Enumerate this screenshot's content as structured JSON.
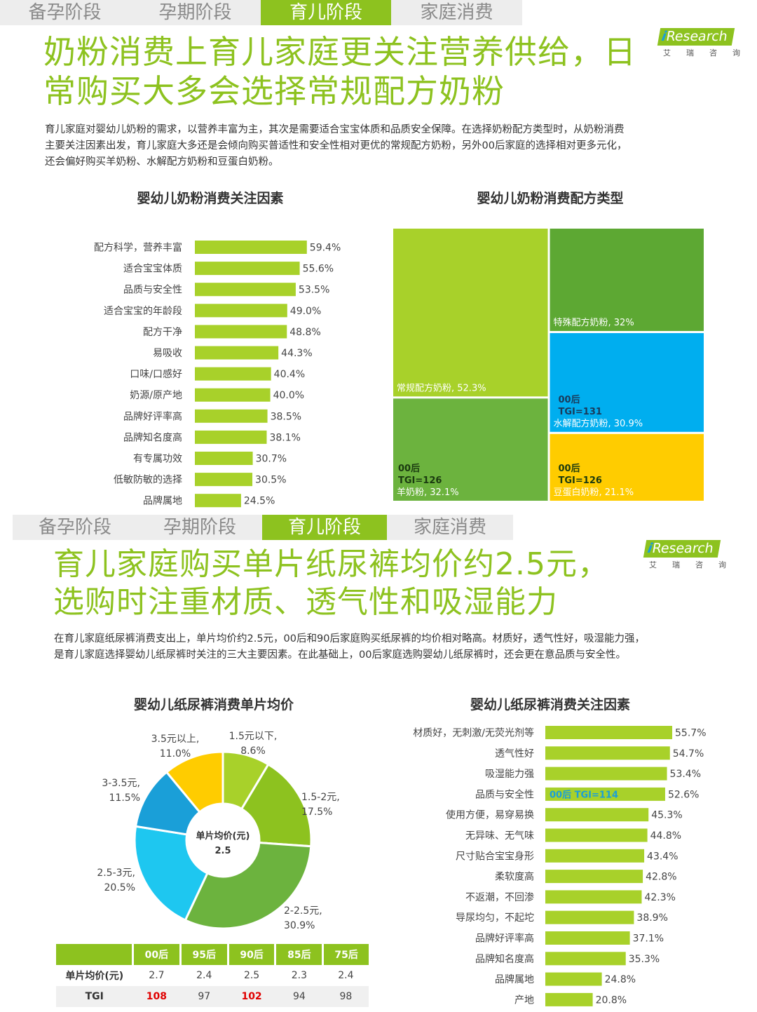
{
  "panel1": {
    "tabs": [
      "备孕阶段",
      "孕期阶段",
      "育儿阶段",
      "家庭消费"
    ],
    "active_tab": 2,
    "headline_lines": [
      "奶粉消费上育儿家庭更关注营养供给，日",
      "常购买大多会选择常规配方奶粉"
    ],
    "logo": {
      "mark": "Research",
      "i": "i",
      "sub": "艾瑞咨询"
    },
    "description_lines": [
      "育儿家庭对婴幼儿奶粉的需求，以营养丰富为主，其次是需要适合宝宝体质和品质安全保障。在选择奶粉配方类型时，从奶粉消费",
      "主要关注因素出发，育儿家庭大多还是会倾向购买普适性和安全性相对更优的常规配方奶粉，另外00后家庭的选择相对更多元化，",
      "还会偏好购买羊奶粉、水解配方奶粉和豆蛋白奶粉。"
    ]
  },
  "panel2": {
    "tabs": [
      "备孕阶段",
      "孕期阶段",
      "育儿阶段",
      "家庭消费"
    ],
    "active_tab": 2,
    "headline_lines": [
      "育儿家庭购买单片纸尿裤均价约2.5元，",
      "选购时注重材质、透气性和吸湿能力"
    ],
    "logo": {
      "mark": "Research",
      "i": "i",
      "sub": "艾瑞咨询"
    },
    "description_lines": [
      "在育儿家庭纸尿裤消费支出上，单片均价约2.5元，00后和90后家庭购买纸尿裤的均价相对略高。材质好，透气性好，吸湿能力强，",
      "是育儿家庭选择婴幼儿纸尿裤时关注的三大主要因素。在此基础上，00后家庭选购婴幼儿纸尿裤时，还会更在意品质与安全性。"
    ]
  },
  "colors": {
    "accent": "#8dc21f",
    "green2": "#6cb33e",
    "green3": "#5da833",
    "blue": "#00aeef",
    "cyan": "#1ec7f0",
    "blue_dark": "#1a9fd8",
    "yellow": "#ffcc00",
    "lightgreen": "#a8d12a",
    "tgi_text": "#1a9fd8",
    "highlight": "#e00000"
  },
  "chart_data": [
    {
      "type": "bar",
      "orientation": "horizontal",
      "title": "婴幼儿奶粉消费关注因素",
      "categories": [
        "配方科学，营养丰富",
        "适合宝宝体质",
        "品质与安全性",
        "适合宝宝的年龄段",
        "配方干净",
        "易吸收",
        "口味/口感好",
        "奶源/原产地",
        "品牌好评率高",
        "品牌知名度高",
        "有专属功效",
        "低敏防敏的选择",
        "品牌属地"
      ],
      "values": [
        59.4,
        55.6,
        53.5,
        49.0,
        48.8,
        44.3,
        40.4,
        40.0,
        38.5,
        38.1,
        30.7,
        30.5,
        24.5
      ],
      "value_labels": [
        "59.4%",
        "55.6%",
        "53.5%",
        "49.0%",
        "48.8%",
        "44.3%",
        "40.4%",
        "40.0%",
        "38.5%",
        "38.1%",
        "30.7%",
        "30.5%",
        "24.5%"
      ],
      "unit": "%"
    },
    {
      "type": "treemap",
      "title": "婴幼儿奶粉消费配方类型",
      "items": [
        {
          "name": "常规配方奶粉",
          "value": 52.3,
          "label": "常规配方奶粉, 52.3%",
          "note": []
        },
        {
          "name": "羊奶粉",
          "value": 32.1,
          "label": "羊奶粉, 32.1%",
          "note": [
            "00后",
            "TGI=126"
          ]
        },
        {
          "name": "特殊配方奶粉",
          "value": 32.0,
          "label": "特殊配方奶粉, 32%",
          "note": []
        },
        {
          "name": "水解配方奶粉",
          "value": 30.9,
          "label": "水解配方奶粉, 30.9%",
          "note": [
            "00后",
            "TGI=131"
          ]
        },
        {
          "name": "豆蛋白奶粉",
          "value": 21.1,
          "label": "豆蛋白奶粉, 21.1%",
          "note": [
            "00后",
            "TGI=126"
          ]
        }
      ]
    },
    {
      "type": "pie",
      "style": "donut",
      "title": "婴幼儿纸尿裤消费单片均价",
      "center_label": [
        "单片均价(元)",
        "2.5"
      ],
      "slices": [
        {
          "name": "1.5元以下",
          "value": 8.6,
          "label": [
            "1.5元以下,",
            "8.6%"
          ]
        },
        {
          "name": "1.5-2元",
          "value": 17.5,
          "label": [
            "1.5-2元,",
            "17.5%"
          ]
        },
        {
          "name": "2-2.5元",
          "value": 30.9,
          "label": [
            "2-2.5元,",
            "30.9%"
          ]
        },
        {
          "name": "2.5-3元",
          "value": 20.5,
          "label": [
            "2.5-3元,",
            "20.5%"
          ]
        },
        {
          "name": "3-3.5元",
          "value": 11.5,
          "label": [
            "3-3.5元,",
            "11.5%"
          ]
        },
        {
          "name": "3.5元以上",
          "value": 11.0,
          "label": [
            "3.5元以上,",
            "11.0%"
          ]
        }
      ]
    },
    {
      "type": "table",
      "columns": [
        "",
        "00后",
        "95后",
        "90后",
        "85后",
        "75后"
      ],
      "rows": [
        {
          "label": "单片均价(元)",
          "values": [
            "2.7",
            "2.4",
            "2.5",
            "2.3",
            "2.4"
          ]
        },
        {
          "label": "TGI",
          "values": [
            "108",
            "97",
            "102",
            "94",
            "98"
          ]
        }
      ],
      "highlighted_tgi": [
        "108",
        "102"
      ]
    },
    {
      "type": "bar",
      "orientation": "horizontal",
      "title": "婴幼儿纸尿裤消费关注因素",
      "categories": [
        "材质好，无刺激/无荧光剂等",
        "透气性好",
        "吸湿能力强",
        "品质与安全性",
        "使用方便，易穿易换",
        "无异味、无气味",
        "尺寸贴合宝宝身形",
        "柔软度高",
        "不返潮，不回渗",
        "导尿均匀，不起坨",
        "品牌好评率高",
        "品牌知名度高",
        "品牌属地",
        "产地"
      ],
      "values": [
        55.7,
        54.7,
        53.4,
        52.6,
        45.3,
        44.8,
        43.4,
        42.8,
        42.3,
        38.9,
        37.1,
        35.3,
        24.8,
        20.8
      ],
      "value_labels": [
        "55.7%",
        "54.7%",
        "53.4%",
        "52.6%",
        "45.3%",
        "44.8%",
        "43.4%",
        "42.8%",
        "42.3%",
        "38.9%",
        "37.1%",
        "35.3%",
        "24.8%",
        "20.8%"
      ],
      "annotations": [
        {
          "category": "品质与安全性",
          "text": "00后 TGI=114"
        }
      ],
      "unit": "%"
    }
  ]
}
